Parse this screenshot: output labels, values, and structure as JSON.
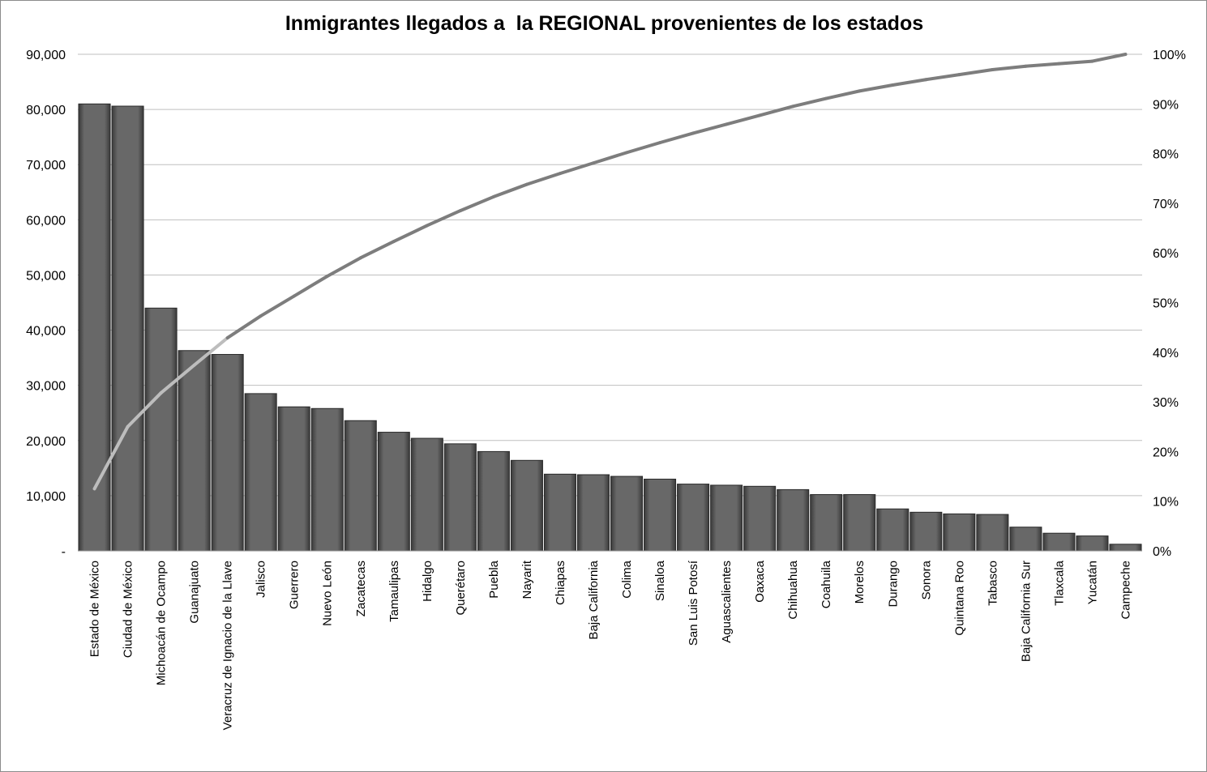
{
  "chart_data": {
    "type": "bar",
    "title": "Inmigrantes llegados a  la REGIONAL provenientes de los estados",
    "xlabel": "",
    "ylabel": "",
    "categories": [
      "Estado de México",
      "Ciudad de México",
      "Michoacán de Ocampo",
      "Guanajuato",
      "Veracruz de Ignacio de la Llave",
      "Jalisco",
      "Guerrero",
      "Nuevo León",
      "Zacatecas",
      "Tamaulipas",
      "Hidalgo",
      "Querétaro",
      "Puebla",
      "Nayarit",
      "Chiapas",
      "Baja California",
      "Colima",
      "Sinaloa",
      "San Luis Potosí",
      "Aguascalientes",
      "Oaxaca",
      "Chihuahua",
      "Coahuila",
      "Morelos",
      "Durango",
      "Sonora",
      "Quintana Roo",
      "Tabasco",
      "Baja California Sur",
      "Tlaxcala",
      "Yucatán",
      "Campeche"
    ],
    "series": [
      {
        "type": "bar",
        "values": [
          81000,
          80600,
          44000,
          36300,
          35600,
          28500,
          26100,
          25800,
          23600,
          21500,
          20400,
          19400,
          18000,
          16400,
          13900,
          13800,
          13500,
          13000,
          12100,
          11900,
          11700,
          11100,
          10200,
          10200,
          7600,
          7000,
          6700,
          6600,
          4300,
          3200,
          2700,
          1200
        ],
        "color": "#686868"
      },
      {
        "type": "line",
        "axis": "right",
        "values": [
          12.5,
          25.0,
          31.8,
          37.4,
          42.9,
          47.3,
          51.3,
          55.3,
          59.0,
          62.3,
          65.5,
          68.5,
          71.3,
          73.8,
          76.0,
          78.1,
          80.2,
          82.2,
          84.1,
          85.9,
          87.7,
          89.5,
          91.1,
          92.6,
          93.8,
          94.9,
          95.9,
          96.9,
          97.6,
          98.1,
          98.6,
          100.0
        ],
        "color": "#7d7d7d"
      }
    ],
    "yticks_left": [
      "90,000",
      "80,000",
      "70,000",
      "60,000",
      "50,000",
      "40,000",
      "30,000",
      "20,000",
      "10,000",
      "-"
    ],
    "yticks_right": [
      "100%",
      "90%",
      "80%",
      "70%",
      "60%",
      "50%",
      "40%",
      "30%",
      "20%",
      "10%",
      "0%"
    ],
    "ylim": [
      0,
      90000
    ],
    "ylim_right": [
      0,
      100
    ],
    "grid": true,
    "legend": "none"
  }
}
